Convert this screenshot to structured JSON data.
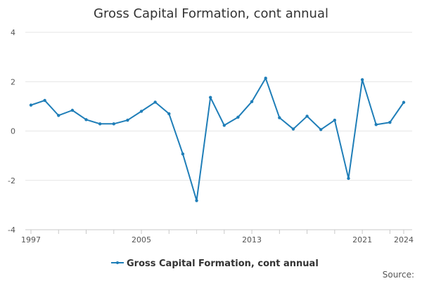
{
  "chart_data": {
    "type": "line",
    "title": "Gross Capital Formation, cont annual",
    "xlabel": "",
    "ylabel": "",
    "x": [
      1997,
      1998,
      1999,
      2000,
      2001,
      2002,
      2003,
      2004,
      2005,
      2006,
      2007,
      2008,
      2009,
      2010,
      2011,
      2012,
      2013,
      2014,
      2015,
      2016,
      2017,
      2018,
      2019,
      2020,
      2021,
      2022,
      2023,
      2024
    ],
    "x_tick_labels": [
      "1997",
      "2005",
      "2013",
      "2021",
      "2024"
    ],
    "xlim": [
      1997,
      2024
    ],
    "ylim": [
      -4,
      4
    ],
    "y_ticks": [
      -4,
      -2,
      0,
      2,
      4
    ],
    "y_tick_labels": [
      "-4",
      "-2",
      "0",
      "2",
      "4"
    ],
    "grid": true,
    "legend_position": "bottom-center",
    "series": [
      {
        "name": "Gross Capital Formation, cont annual",
        "color": "#1f7eb8",
        "values": [
          1.05,
          1.24,
          0.63,
          0.84,
          0.46,
          0.29,
          0.29,
          0.44,
          0.8,
          1.17,
          0.7,
          -0.93,
          -2.82,
          1.36,
          0.23,
          0.56,
          1.19,
          2.14,
          0.54,
          0.08,
          0.6,
          0.06,
          0.44,
          -1.92,
          2.08,
          0.26,
          0.35,
          1.16
        ]
      }
    ],
    "source_label": "Source:"
  }
}
